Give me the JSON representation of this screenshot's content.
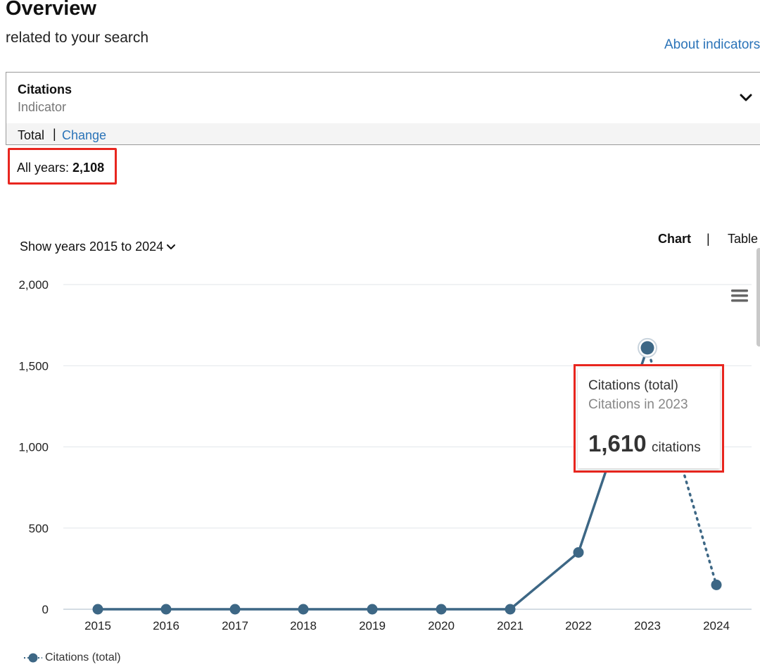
{
  "header": {
    "title": "Overview",
    "subtitle": "related to your search",
    "about_link": "About indicators"
  },
  "indicator": {
    "name": "Citations",
    "type_label": "Indicator",
    "mode_active": "Total",
    "mode_separator": "|",
    "mode_change": "Change"
  },
  "summary": {
    "all_years_label": "All years:",
    "all_years_value": "2,108"
  },
  "controls": {
    "years_filter": "Show years 2015 to 2024",
    "view_chart": "Chart",
    "view_separator": "|",
    "view_table": "Table"
  },
  "tooltip": {
    "title": "Citations (total)",
    "subtitle": "Citations in 2023",
    "value": "1,610",
    "unit": "citations"
  },
  "colors": {
    "series": "#3d6785",
    "gridline": "#e2e6ea",
    "highlight": "#e8261f",
    "link": "#2a73b8"
  },
  "chart_data": {
    "type": "line",
    "title": "",
    "xlabel": "",
    "ylabel": "",
    "x": [
      2015,
      2016,
      2017,
      2018,
      2019,
      2020,
      2021,
      2022,
      2023,
      2024
    ],
    "x_tick_labels": [
      "2015",
      "2016",
      "2017",
      "2018",
      "2019",
      "2020",
      "2021",
      "2022",
      "2023",
      "2024"
    ],
    "y_tick_labels": [
      "0",
      "500",
      "1,000",
      "1,500",
      "2,000"
    ],
    "y_ticks": [
      0,
      500,
      1000,
      1500,
      2000
    ],
    "ylim": [
      0,
      2000
    ],
    "grid": true,
    "legend_position": "bottom-left",
    "series": [
      {
        "name": "Citations (total)",
        "values": [
          0,
          0,
          0,
          0,
          0,
          0,
          0,
          350,
          1610,
          150
        ],
        "dotted_from_index": 8,
        "highlighted_index": 8
      }
    ]
  }
}
